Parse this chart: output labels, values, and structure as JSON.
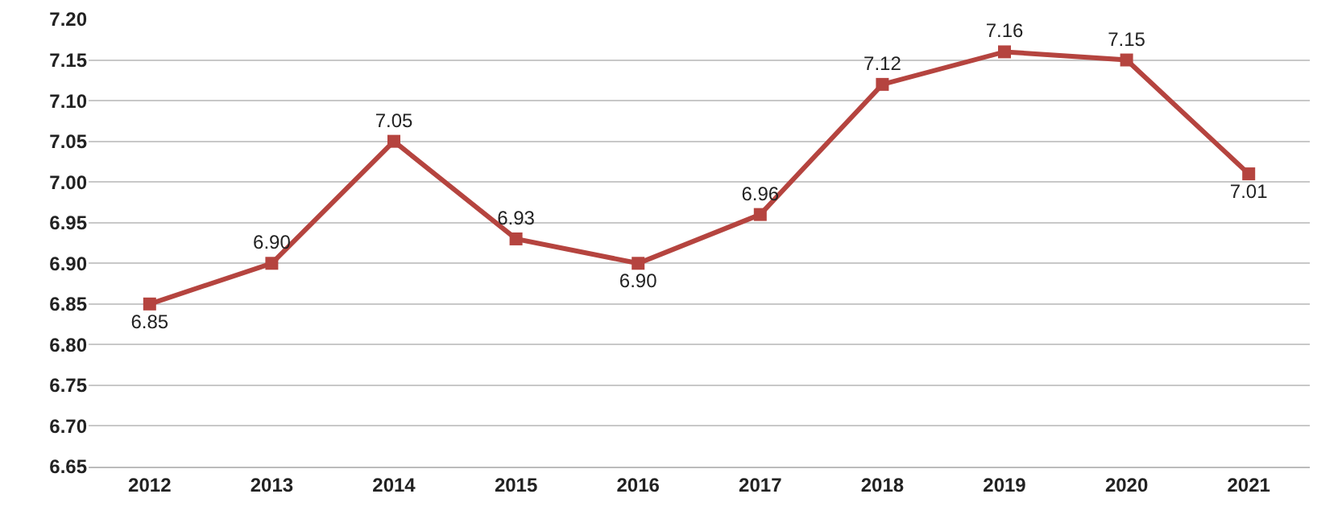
{
  "chart_data": {
    "type": "line",
    "categories": [
      "2012",
      "2013",
      "2014",
      "2015",
      "2016",
      "2017",
      "2018",
      "2019",
      "2020",
      "2021"
    ],
    "series": [
      {
        "color": "#b5443f",
        "values": [
          6.85,
          6.9,
          7.05,
          6.93,
          6.9,
          6.96,
          7.12,
          7.16,
          7.15,
          7.01
        ],
        "value_labels": [
          "6.85",
          "6.90",
          "7.05",
          "6.93",
          "6.90",
          "6.96",
          "7.12",
          "7.16",
          "7.15",
          "7.01"
        ]
      }
    ],
    "ylim": [
      6.65,
      7.2
    ],
    "yticks": [
      {
        "value": 6.65,
        "label": "6.65"
      },
      {
        "value": 6.7,
        "label": "6.70"
      },
      {
        "value": 6.75,
        "label": "6.75"
      },
      {
        "value": 6.8,
        "label": "6.80"
      },
      {
        "value": 6.85,
        "label": "6.85"
      },
      {
        "value": 6.9,
        "label": "6.90"
      },
      {
        "value": 6.95,
        "label": "6.95"
      },
      {
        "value": 7.0,
        "label": "7.00"
      },
      {
        "value": 7.05,
        "label": "7.05"
      },
      {
        "value": 7.1,
        "label": "7.10"
      },
      {
        "value": 7.15,
        "label": "7.15"
      },
      {
        "value": 7.2,
        "label": "7.20"
      }
    ],
    "grid": "y",
    "marker": "square",
    "line_style": "solid"
  }
}
